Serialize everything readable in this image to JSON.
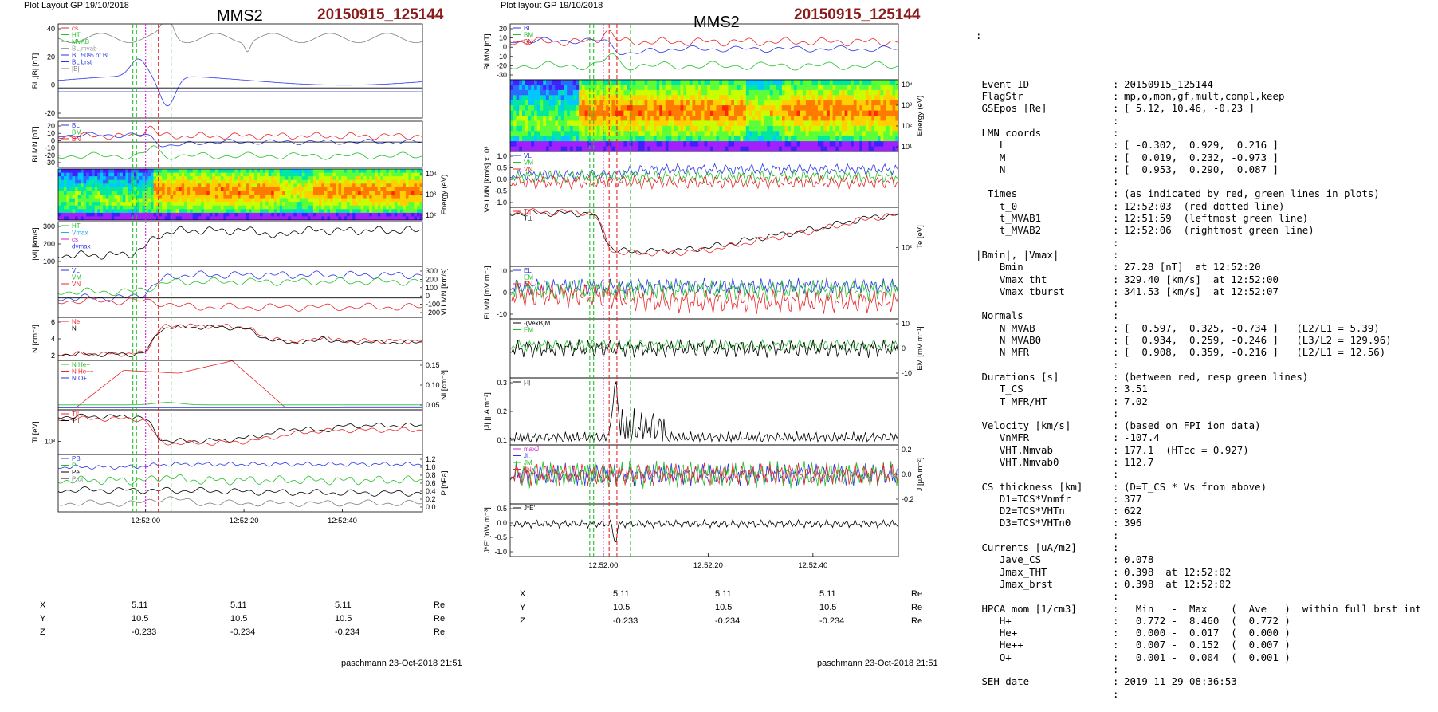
{
  "header": {
    "left": {
      "plot_layout": "Plot Layout GP 19/10/2018",
      "spacecraft": "MMS2",
      "event": "20150915_125144"
    },
    "middle": {
      "plot_layout": "Plot layout GP 19/10/2018",
      "spacecraft": "MMS2",
      "event": "20150915_125144"
    }
  },
  "colors": {
    "red": "#e8262a",
    "green": "#22c02a",
    "blue": "#2a35e8",
    "black": "#000000",
    "magenta": "#cc22cc",
    "cyan": "#22aaee",
    "grey": "#808080",
    "dark_red": "#8b1a1a"
  },
  "left_panels": [
    {
      "id": "bl",
      "ylabel": "BL,|B| [nT]",
      "ticks": [
        "40",
        "20",
        "0",
        "-20"
      ],
      "tick_side": "left",
      "legend": [
        {
          "text": "cs",
          "color": "#e8262a"
        },
        {
          "text": "HT",
          "color": "#22c02a"
        },
        {
          "text": "MVAB",
          "color": "#22c02a"
        },
        {
          "text": "BL,mvab",
          "color": "#a0a0a0"
        },
        {
          "text": "BL 50% of BL",
          "color": "#2a35e8"
        },
        {
          "text": "BL brst",
          "color": "#2a35e8"
        },
        {
          "text": "|B|",
          "color": "#808080"
        }
      ]
    },
    {
      "id": "blmn",
      "ylabel": "BLMN [nT]",
      "ticks": [
        "20",
        "10",
        "0",
        "-10",
        "-20",
        "-30"
      ],
      "tick_side": "left",
      "legend": [
        {
          "text": "BL",
          "color": "#2a35e8"
        },
        {
          "text": "BM",
          "color": "#22c02a"
        },
        {
          "text": "BN",
          "color": "#e8262a"
        }
      ]
    },
    {
      "id": "spec",
      "ylabel": "Energy (eV)",
      "ticks": [
        "10⁴",
        "10³",
        "10²"
      ],
      "tick_side": "right",
      "legend": []
    },
    {
      "id": "vi",
      "ylabel": "|Vi| [km/s]",
      "ticks": [
        "300",
        "200",
        "100"
      ],
      "tick_side": "left",
      "legend": [
        {
          "text": "HT",
          "color": "#22c02a"
        },
        {
          "text": "Vmax",
          "color": "#22aaee"
        },
        {
          "text": "cs",
          "color": "#cc22cc"
        },
        {
          "text": "dvmax",
          "color": "#2a35e8"
        }
      ]
    },
    {
      "id": "vilmn",
      "ylabel": "Vi LMN [km/s]",
      "ticks": [
        "300",
        "200",
        "100",
        "0",
        "-100",
        "-200"
      ],
      "tick_side": "right",
      "legend": [
        {
          "text": "VL",
          "color": "#2a35e8"
        },
        {
          "text": "VM",
          "color": "#22c02a"
        },
        {
          "text": "VN",
          "color": "#e8262a"
        }
      ]
    },
    {
      "id": "n",
      "ylabel": "N [cm⁻³]",
      "ticks": [
        "6",
        "4",
        "2"
      ],
      "tick_side": "left",
      "legend": [
        {
          "text": "Ne",
          "color": "#e8262a"
        },
        {
          "text": "Ni",
          "color": "#000000"
        }
      ]
    },
    {
      "id": "ni",
      "ylabel": "Ni [cm⁻³]",
      "ticks": [
        "0.15",
        "0.10",
        "0.05"
      ],
      "tick_side": "right",
      "legend": [
        {
          "text": "N He+",
          "color": "#22c02a"
        },
        {
          "text": "N He++",
          "color": "#e8262a"
        },
        {
          "text": "N O+",
          "color": "#2a35e8"
        }
      ]
    },
    {
      "id": "ti",
      "ylabel": "Ti [eV]",
      "ticks": [
        "10³"
      ],
      "tick_side": "left",
      "legend": [
        {
          "text": "T||",
          "color": "#e8262a"
        },
        {
          "text": "T⊥",
          "color": "#000000"
        }
      ]
    },
    {
      "id": "p",
      "ylabel": "P [nPa]",
      "ticks": [
        "1.2",
        "1.0",
        "0.8",
        "0.6",
        "0.4",
        "0.2",
        "0.0"
      ],
      "tick_side": "right",
      "legend": [
        {
          "text": "PB",
          "color": "#2a35e8"
        },
        {
          "text": "Pi",
          "color": "#22c02a"
        },
        {
          "text": "Pe",
          "color": "#000000"
        },
        {
          "text": "Ptot",
          "color": "#808080"
        }
      ]
    }
  ],
  "middle_panels": [
    {
      "id": "blmn2",
      "ylabel": "BLMN [nT]",
      "ticks": [
        "20",
        "10",
        "0",
        "-10",
        "-20",
        "-30"
      ],
      "tick_side": "left",
      "legend": [
        {
          "text": "BL",
          "color": "#2a35e8"
        },
        {
          "text": "BM",
          "color": "#22c02a"
        },
        {
          "text": "BN",
          "color": "#e8262a"
        }
      ]
    },
    {
      "id": "espec",
      "ylabel": "Energy (eV)",
      "ticks": [
        "10⁴",
        "10³",
        "10²",
        "10¹"
      ],
      "tick_side": "right",
      "legend": []
    },
    {
      "id": "ve",
      "ylabel": "Ve LMN [km/s] x10³",
      "ticks": [
        "1.0",
        "0.5",
        "0.0",
        "-0.5",
        "-1.0"
      ],
      "tick_side": "left",
      "legend": [
        {
          "text": "VL",
          "color": "#2a35e8"
        },
        {
          "text": "VM",
          "color": "#22c02a"
        },
        {
          "text": "VN",
          "color": "#e8262a"
        }
      ]
    },
    {
      "id": "te",
      "ylabel": "Te [eV]",
      "ticks": [
        "10²"
      ],
      "tick_side": "right",
      "legend": [
        {
          "text": "T||",
          "color": "#e8262a"
        },
        {
          "text": "T⊥",
          "color": "#000000"
        }
      ]
    },
    {
      "id": "elmn",
      "ylabel": "ELMN [mV m⁻¹]",
      "ticks": [
        "10",
        "0",
        "-10"
      ],
      "tick_side": "left",
      "legend": [
        {
          "text": "EL",
          "color": "#2a35e8"
        },
        {
          "text": "EM",
          "color": "#22c02a"
        },
        {
          "text": "EN",
          "color": "#e8262a"
        }
      ]
    },
    {
      "id": "em",
      "ylabel": "EM [mV m⁻¹]",
      "ticks": [
        "10",
        "0",
        "-10"
      ],
      "tick_side": "right",
      "legend": [
        {
          "text": "-(VexB)M",
          "color": "#000000"
        },
        {
          "text": "EM",
          "color": "#22c02a"
        }
      ]
    },
    {
      "id": "jabs",
      "ylabel": "|J| [μA m⁻²]",
      "ticks": [
        "0.3",
        "0.2",
        "0.1"
      ],
      "tick_side": "left",
      "legend": [
        {
          "text": "|J|",
          "color": "#000000"
        }
      ]
    },
    {
      "id": "j",
      "ylabel": "J [μA m⁻²]",
      "ticks": [
        "0.2",
        "0.0",
        "-0.2"
      ],
      "tick_side": "right",
      "legend": [
        {
          "text": "maxJ",
          "color": "#cc22cc"
        },
        {
          "text": "JL",
          "color": "#2a35e8"
        },
        {
          "text": "JM",
          "color": "#22c02a"
        },
        {
          "text": "JN",
          "color": "#e8262a"
        }
      ]
    },
    {
      "id": "je",
      "ylabel": "J*E' [nW m⁻³]",
      "ticks": [
        "0.5",
        "0.0",
        "-0.5",
        "-1.0"
      ],
      "tick_side": "left",
      "legend": [
        {
          "text": "J*E'",
          "color": "#000000"
        }
      ]
    }
  ],
  "time_ticks": [
    "12:52:00",
    "12:52:20",
    "12:52:40"
  ],
  "ephemeris": {
    "rows": [
      {
        "label": "X",
        "values": [
          "5.11",
          "5.11",
          "5.11"
        ],
        "unit": "Re"
      },
      {
        "label": "Y",
        "values": [
          "10.5",
          "10.5",
          "10.5"
        ],
        "unit": "Re"
      },
      {
        "label": "Z",
        "values": [
          "-0.233",
          "-0.234",
          "-0.234"
        ],
        "unit": "Re"
      }
    ]
  },
  "footer": {
    "left": "paschmann 23-Oct-2018 21:51",
    "middle": "paschmann 23-Oct-2018 21:51"
  },
  "info": {
    "top_mark": ":",
    "rows": [
      {
        "k": "",
        "s": "",
        "v": ""
      },
      {
        "k": " Event ID",
        "s": ":",
        "v": "20150915_125144"
      },
      {
        "k": " FlagStr",
        "s": ":",
        "v": "mp,o,mon,gf,mult,compl,keep"
      },
      {
        "k": " GSEpos [Re]",
        "s": ":",
        "v": "[ 5.12, 10.46, -0.23 ]"
      },
      {
        "k": "",
        "s": ":",
        "v": ""
      },
      {
        "k": " LMN coords",
        "s": ":",
        "v": ""
      },
      {
        "k": "    L",
        "s": ":",
        "v": "[ -0.302,  0.929,  0.216 ]"
      },
      {
        "k": "    M",
        "s": ":",
        "v": "[  0.019,  0.232, -0.973 ]"
      },
      {
        "k": "    N",
        "s": ":",
        "v": "[  0.953,  0.290,  0.087 ]"
      },
      {
        "k": "",
        "s": ":",
        "v": ""
      },
      {
        "k": "  Times",
        "s": ":",
        "v": "(as indicated by red, green lines in plots)"
      },
      {
        "k": "    t_0",
        "s": ":",
        "v": "12:52:03  (red dotted line)"
      },
      {
        "k": "    t_MVAB1",
        "s": ":",
        "v": "12:51:59  (leftmost green line)"
      },
      {
        "k": "    t_MVAB2",
        "s": ":",
        "v": "12:52:06  (rightmost green line)"
      },
      {
        "k": "",
        "s": ":",
        "v": ""
      },
      {
        "k": "|Bmin|, |Vmax|",
        "s": ":",
        "v": ""
      },
      {
        "k": "    Bmin",
        "s": ":",
        "v": "27.28 [nT]  at 12:52:20"
      },
      {
        "k": "    Vmax_tht",
        "s": ":",
        "v": "329.40 [km/s]  at 12:52:00"
      },
      {
        "k": "    Vmax_tburst",
        "s": ":",
        "v": "341.53 [km/s]  at 12:52:07"
      },
      {
        "k": "",
        "s": ":",
        "v": ""
      },
      {
        "k": " Normals",
        "s": ":",
        "v": ""
      },
      {
        "k": "    N MVAB",
        "s": ":",
        "v": "[  0.597,  0.325, -0.734 ]   (L2/L1 = 5.39)"
      },
      {
        "k": "    N MVAB0",
        "s": ":",
        "v": "[  0.934,  0.259, -0.246 ]   (L3/L2 = 129.96)"
      },
      {
        "k": "    N MFR",
        "s": ":",
        "v": "[  0.908,  0.359, -0.216 ]   (L2/L1 = 12.56)"
      },
      {
        "k": "",
        "s": ":",
        "v": ""
      },
      {
        "k": " Durations [s]",
        "s": ":",
        "v": "(between red, resp green lines)"
      },
      {
        "k": "    T_CS",
        "s": ":",
        "v": "3.51"
      },
      {
        "k": "    T_MFR/HT",
        "s": ":",
        "v": "7.02"
      },
      {
        "k": "",
        "s": ":",
        "v": ""
      },
      {
        "k": " Velocity [km/s]",
        "s": ":",
        "v": "(based on FPI ion data)"
      },
      {
        "k": "    VnMFR",
        "s": ":",
        "v": "-107.4"
      },
      {
        "k": "    VHT.Nmvab",
        "s": ":",
        "v": "177.1  (HTcc = 0.927)"
      },
      {
        "k": "    VHT.Nmvab0",
        "s": ":",
        "v": "112.7"
      },
      {
        "k": "",
        "s": ":",
        "v": ""
      },
      {
        "k": " CS thickness [km]",
        "s": ":",
        "v": "(D=T_CS * Vs from above)"
      },
      {
        "k": "    D1=TCS*Vnmfr",
        "s": ":",
        "v": "377"
      },
      {
        "k": "    D2=TCS*VHTn",
        "s": ":",
        "v": "622"
      },
      {
        "k": "    D3=TCS*VHTn0",
        "s": ":",
        "v": "396"
      },
      {
        "k": "",
        "s": ":",
        "v": ""
      },
      {
        "k": " Currents [uA/m2]",
        "s": ":",
        "v": ""
      },
      {
        "k": "    Jave_CS",
        "s": ":",
        "v": "0.078"
      },
      {
        "k": "    Jmax_THT",
        "s": ":",
        "v": "0.398  at 12:52:02"
      },
      {
        "k": "    Jmax_brst",
        "s": ":",
        "v": "0.398  at 12:52:02"
      },
      {
        "k": "",
        "s": ":",
        "v": ""
      },
      {
        "k": " HPCA mom [1/cm3]",
        "s": ":",
        "v": "  Min   -  Max    (  Ave   )  within full brst int"
      },
      {
        "k": "    H+",
        "s": ":",
        "v": "  0.772 -  8.460  (  0.772 )"
      },
      {
        "k": "    He+",
        "s": ":",
        "v": "  0.000 -  0.017  (  0.000 )"
      },
      {
        "k": "    He++",
        "s": ":",
        "v": "  0.007 -  0.152  (  0.007 )"
      },
      {
        "k": "    O+",
        "s": ":",
        "v": "  0.001 -  0.004  (  0.001 )"
      },
      {
        "k": "",
        "s": ":",
        "v": ""
      },
      {
        "k": " SEH date",
        "s": ":",
        "v": "2019-11-29 08:36:53"
      },
      {
        "k": "",
        "s": ":",
        "v": ""
      }
    ]
  },
  "chart_data": [
    {
      "type": "line",
      "title": "MMS2 20150915_125144",
      "x_ticks": [
        "12:52:00",
        "12:52:20",
        "12:52:40"
      ],
      "panels": [
        "BL,|B| [nT]",
        "BLMN [nT]",
        "Energy (eV)",
        "|Vi| [km/s]",
        "Vi LMN [km/s]",
        "N [cm⁻³]",
        "Ni [cm⁻³]",
        "Ti [eV]",
        "P [nPa]"
      ],
      "markers": {
        "t_0": "12:52:03",
        "t_MVAB1": "12:51:59",
        "t_MVAB2": "12:52:06"
      }
    },
    {
      "type": "line",
      "title": "MMS2 20150915_125144",
      "x_ticks": [
        "12:52:00",
        "12:52:20",
        "12:52:40"
      ],
      "panels": [
        "BLMN [nT]",
        "Energy (eV)",
        "Ve LMN [km/s]",
        "Te [eV]",
        "ELMN [mV m⁻¹]",
        "EM [mV m⁻¹]",
        "|J| [μA m⁻²]",
        "J [μA m⁻²]",
        "J*E' [nW m⁻³]"
      ]
    }
  ]
}
